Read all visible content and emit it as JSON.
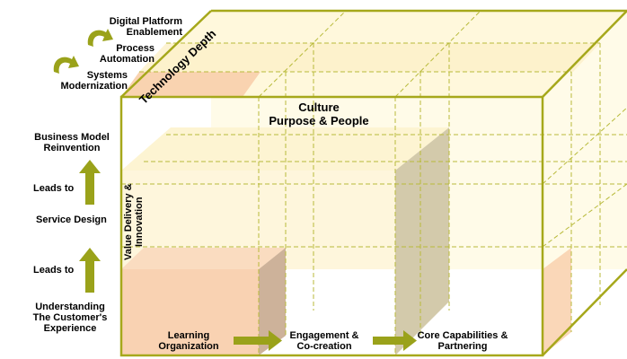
{
  "axes": {
    "technology_depth": "Technology Depth",
    "value_delivery_line1": "Value Delivery &",
    "value_delivery_line2": "Innovation"
  },
  "culture": {
    "line1": "Culture",
    "line2": "Purpose & People"
  },
  "technology_levels": {
    "level3_line1": "Digital Platform",
    "level3_line2": "Enablement",
    "level2_line1": "Process",
    "level2_line2": "Automation",
    "level1_line1": "Systems",
    "level1_line2": "Modernization"
  },
  "value_chain": {
    "top_line1": "Business Model",
    "top_line2": "Reinvention",
    "leads_to_upper": "Leads to",
    "middle": "Service Design",
    "leads_to_lower": "Leads to",
    "bottom_line1": "Understanding",
    "bottom_line2": "The Customer's",
    "bottom_line3": "Experience"
  },
  "capabilities": {
    "c1_line1": "Learning",
    "c1_line2": "Organization",
    "c2_line1": "Engagement &",
    "c2_line2": "Co-creation",
    "c3_line1": "Core Capabilities &",
    "c3_line2": "Partnering"
  },
  "colors": {
    "frame": "#a6a81b",
    "arrow": "#9aa21a",
    "peach": "#f7d0ac",
    "cream": "#fdf5d6",
    "taupe": "#cfc5a5"
  }
}
